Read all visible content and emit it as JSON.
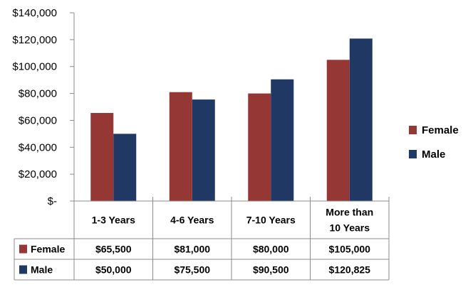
{
  "chart_data": {
    "type": "bar",
    "categories": [
      [
        "1-3 Years"
      ],
      [
        "4-6 Years"
      ],
      [
        "7-10 Years"
      ],
      [
        "More than",
        "10 Years"
      ]
    ],
    "series": [
      {
        "name": "Female",
        "color": "#953735",
        "values": [
          65500,
          81000,
          80000,
          105000
        ],
        "table_values": [
          "$65,500",
          "$81,000",
          "$80,000",
          "$105,000"
        ]
      },
      {
        "name": "Male",
        "color": "#1F3864",
        "values": [
          50000,
          75500,
          90500,
          120825
        ],
        "table_values": [
          "$50,000",
          "$75,500",
          "$90,500",
          "$120,825"
        ]
      }
    ],
    "ylim": [
      0,
      140000
    ],
    "yticks": [
      {
        "value": 0,
        "label": "$-"
      },
      {
        "value": 20000,
        "label": "$20,000"
      },
      {
        "value": 40000,
        "label": "$40,000"
      },
      {
        "value": 60000,
        "label": "$60,000"
      },
      {
        "value": 80000,
        "label": "$80,000"
      },
      {
        "value": 100000,
        "label": "$100,000"
      },
      {
        "value": 120000,
        "label": "$120,000"
      },
      {
        "value": 140000,
        "label": "$140,000"
      }
    ],
    "title": "",
    "xlabel": "",
    "ylabel": "",
    "grid": false,
    "legend_position": "right",
    "data_table": true
  }
}
